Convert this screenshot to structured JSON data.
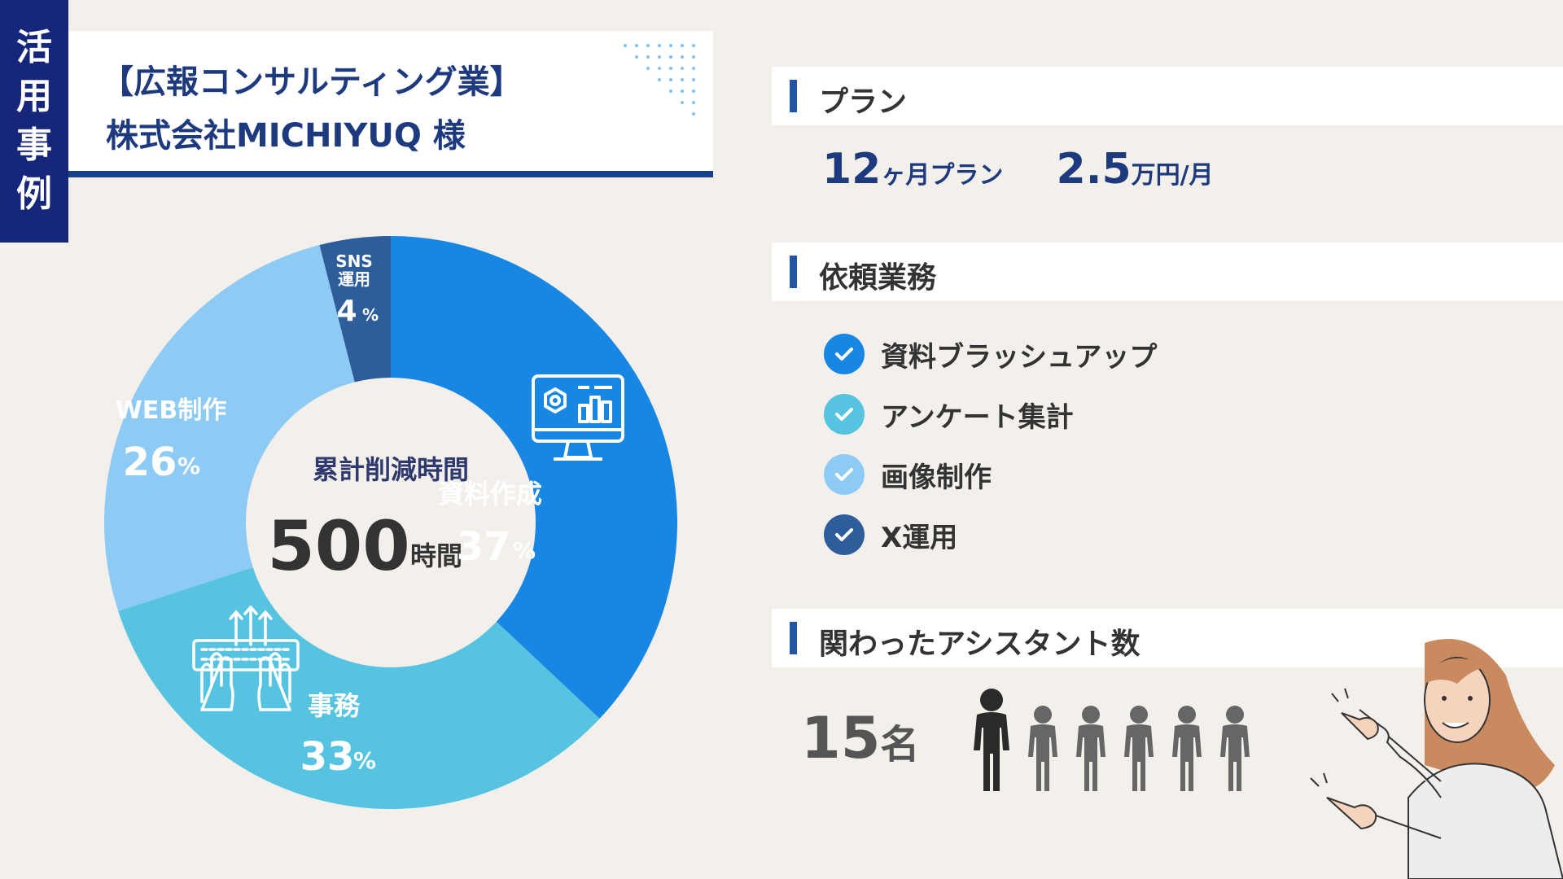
{
  "tag": {
    "chars": [
      "活",
      "用",
      "事",
      "例"
    ]
  },
  "title": {
    "line1": "【広報コンサルティング業】",
    "line2": "株式会社MICHIYUQ 様"
  },
  "chart_data": {
    "type": "pie",
    "categories": [
      "資料作成",
      "事務",
      "WEB制作",
      "SNS運用"
    ],
    "values": [
      37,
      33,
      26,
      4
    ],
    "colors": [
      "#1886e3",
      "#56c3e0",
      "#8ecbf4",
      "#2d5d9b"
    ],
    "center": {
      "label": "累計削減時間",
      "value": "500",
      "unit": "時間"
    },
    "labels": {
      "shiryo": {
        "name": "資料作成",
        "pct": "37",
        "unit": "%"
      },
      "jimu": {
        "name": "事務",
        "pct": "33",
        "unit": "%"
      },
      "web": {
        "name": "WEB制作",
        "pct": "26",
        "unit": "%"
      },
      "sns_line1": "SNS",
      "sns_line2": "運用",
      "sns_pct": "4",
      "sns_unit": "%"
    }
  },
  "sections": {
    "plan": "プラン",
    "tasks": "依頼業務",
    "assistants": "関わったアシスタント数"
  },
  "plan": {
    "months": "12",
    "months_unit": "ヶ月プラン",
    "price": "2.5",
    "price_unit": "万円/月"
  },
  "tasks": [
    {
      "label": "資料ブラッシュアップ",
      "color": "#1886e3"
    },
    {
      "label": "アンケート集計",
      "color": "#56c3e0"
    },
    {
      "label": "画像制作",
      "color": "#8ecbf4"
    },
    {
      "label": "X運用",
      "color": "#2d5d9b"
    }
  ],
  "assistants": {
    "count": "15",
    "unit": "名",
    "highlighted": 1,
    "total_icons": 6
  },
  "icons": [
    "monitor-chart-icon",
    "hands-keyboard-icon",
    "check-icon",
    "person-icon",
    "woman-pointing-illustration"
  ]
}
